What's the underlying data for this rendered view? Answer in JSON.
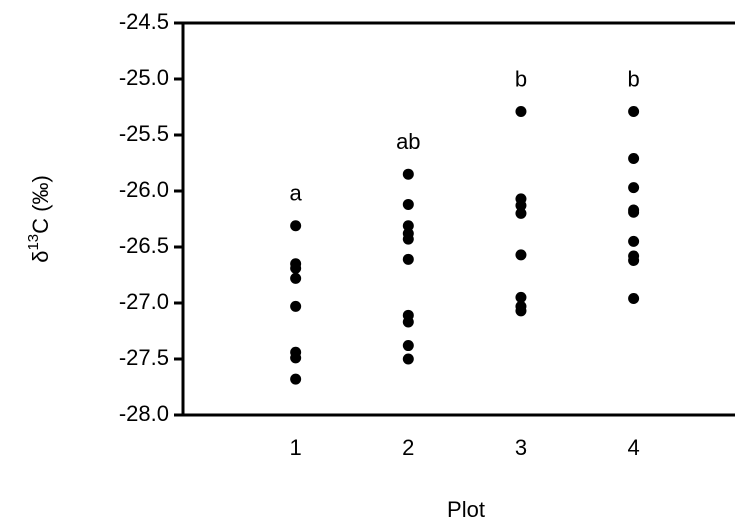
{
  "chart_data": {
    "type": "scatter",
    "xlabel": "Plot",
    "ylabel": {
      "prefix": "δ",
      "superscript": "13",
      "suffix": "C (‰)"
    },
    "x": [
      1,
      1,
      1,
      1,
      1,
      1,
      1,
      1,
      2,
      2,
      2,
      2,
      2,
      2,
      2,
      2,
      2,
      2,
      3,
      3,
      3,
      3,
      3,
      3,
      3,
      3,
      4,
      4,
      4,
      4,
      4,
      4,
      4,
      4,
      4
    ],
    "values": [
      -26.31,
      -26.65,
      -26.69,
      -26.78,
      -27.03,
      -27.44,
      -27.49,
      -27.68,
      -25.85,
      -26.12,
      -26.31,
      -26.38,
      -26.43,
      -26.61,
      -27.11,
      -27.17,
      -27.38,
      -27.5,
      -25.29,
      -26.07,
      -26.13,
      -26.2,
      -26.57,
      -26.95,
      -27.03,
      -27.07,
      -25.29,
      -25.71,
      -25.97,
      -26.17,
      -26.19,
      -26.45,
      -26.58,
      -26.62,
      -26.96
    ],
    "color": "#000000",
    "group_labels": [
      "a",
      "ab",
      "b",
      "b"
    ],
    "xlim": [
      0,
      4.9
    ],
    "xticks": [
      1,
      2,
      3,
      4
    ],
    "ylim": [
      -28,
      -24.5
    ],
    "yticks": [
      -24.5,
      {
        "value": -25,
        "label": "-25.0"
      },
      -25.5,
      {
        "value": -26,
        "label": "-26.0"
      },
      -26.5,
      {
        "value": -27,
        "label": "-27.0"
      },
      -27.5,
      {
        "value": -28,
        "label": "-28.0"
      }
    ]
  }
}
